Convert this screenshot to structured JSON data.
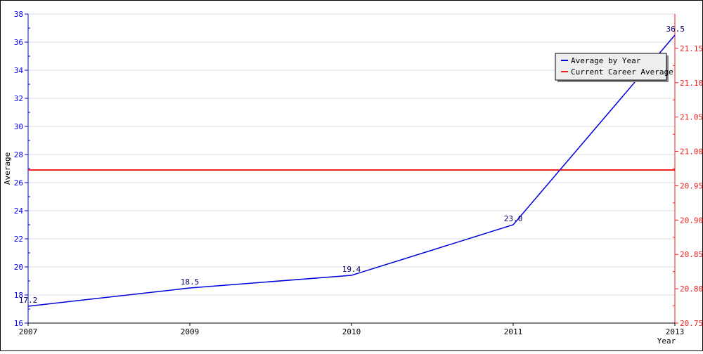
{
  "chart_data": {
    "type": "line",
    "x": [
      2007,
      2009,
      2010,
      2011,
      2013
    ],
    "x_tick_labels": [
      "2007",
      "2009",
      "2010",
      "2011",
      "2013"
    ],
    "xlabel": "Year",
    "ylabel": "Average",
    "ylim": [
      16,
      38
    ],
    "y_ticks": [
      16,
      18,
      20,
      22,
      24,
      26,
      28,
      30,
      32,
      34,
      36,
      38
    ],
    "y2lim": [
      20.75,
      21.2
    ],
    "y2_ticks": [
      "20.75",
      "20.80",
      "20.85",
      "20.90",
      "20.95",
      "21.00",
      "21.05",
      "21.10",
      "21.15"
    ],
    "series": [
      {
        "name": "Average by Year",
        "color": "#0000dd",
        "values": [
          17.2,
          18.5,
          19.4,
          23.0,
          36.5
        ],
        "data_labels": [
          "17.2",
          "18.5",
          "19.4",
          "23.0",
          "36.5"
        ]
      },
      {
        "name": "Current Career Average",
        "color": "#ee2222",
        "values": [
          26.9,
          26.9,
          26.9,
          26.9,
          26.9
        ]
      }
    ],
    "grid": true,
    "legend_position": "top-right"
  }
}
